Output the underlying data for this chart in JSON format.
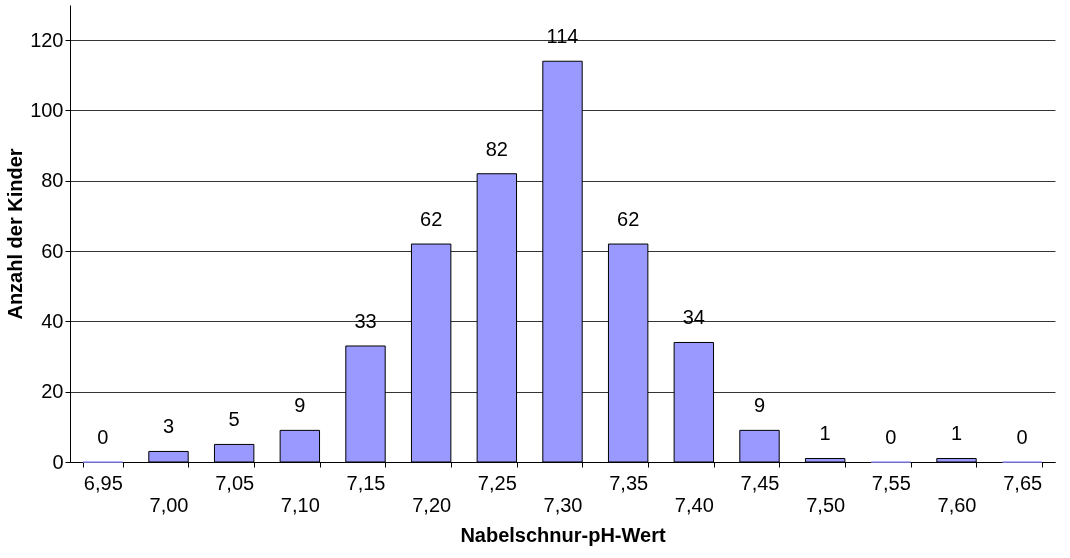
{
  "chart_data": {
    "type": "bar",
    "xlabel": "Nabelschnur-pH-Wert",
    "ylabel": "Anzahl  der Kinder",
    "categories": [
      "6,95",
      "7,00",
      "7,05",
      "7,10",
      "7,15",
      "7,20",
      "7,25",
      "7,30",
      "7,35",
      "7,40",
      "7,45",
      "7,50",
      "7,55",
      "7,60",
      "7,65"
    ],
    "values": [
      0,
      3,
      5,
      9,
      33,
      62,
      82,
      114,
      62,
      34,
      9,
      1,
      0,
      1,
      0
    ],
    "color": "#9999ff",
    "ylim": [
      0,
      130
    ],
    "yticks": [
      0,
      20,
      40,
      60,
      80,
      100,
      120
    ],
    "grid": "y",
    "data_labels": true
  }
}
